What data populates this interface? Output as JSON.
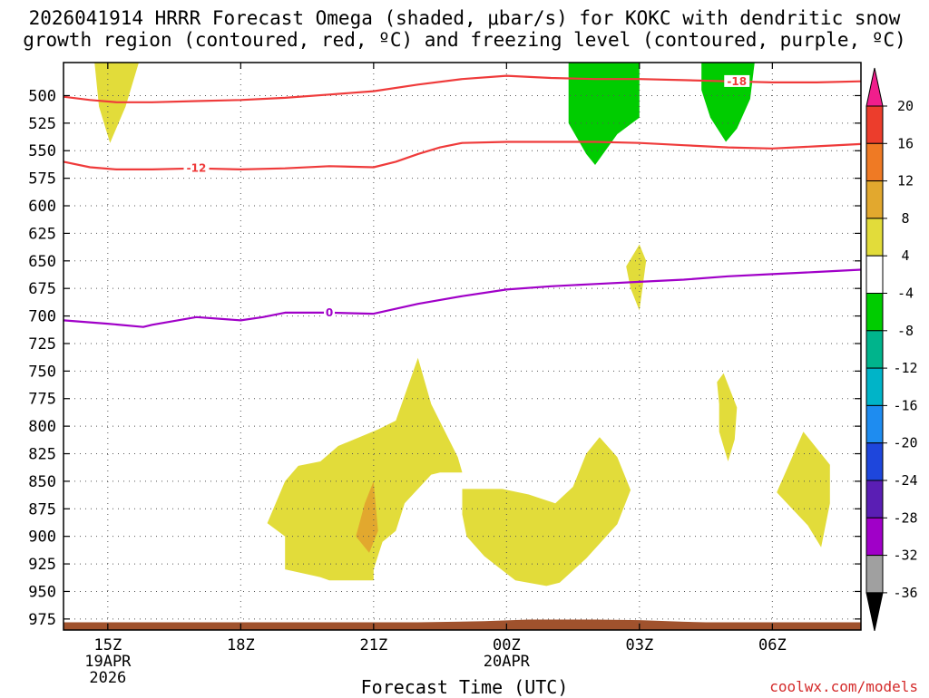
{
  "title_line1": "2026041914 HRRR Forecast Omega (shaded, μbar/s) for KOKC with dendritic snow",
  "title_line2": "growth region (contoured, red, ºC) and freezing level (contoured, purple, ºC)",
  "credit": "coolwx.com/models",
  "chart_data": {
    "type": "heatmap",
    "title": "2026041914 HRRR Forecast Omega (shaded, μbar/s) for KOKC with dendritic snow growth region (contoured, red, ºC) and freezing level (contoured, purple, ºC)",
    "xlabel": "Forecast Time (UTC)",
    "ylabel": "",
    "x_unit": "hours since 2026-04-19 14Z",
    "xlim": [
      0,
      18
    ],
    "y_axis": "pressure (hPa), inverted",
    "ylim": [
      985,
      470
    ],
    "y_ticks": [
      500,
      525,
      550,
      575,
      600,
      625,
      650,
      675,
      700,
      725,
      750,
      775,
      800,
      825,
      850,
      875,
      900,
      925,
      950,
      975
    ],
    "x_ticks": [
      {
        "x": 1,
        "label": "15Z",
        "sub1": "19APR",
        "sub2": "2026"
      },
      {
        "x": 4,
        "label": "18Z",
        "sub1": "",
        "sub2": ""
      },
      {
        "x": 7,
        "label": "21Z",
        "sub1": "",
        "sub2": ""
      },
      {
        "x": 10,
        "label": "00Z",
        "sub1": "20APR",
        "sub2": ""
      },
      {
        "x": 13,
        "label": "03Z",
        "sub1": "",
        "sub2": ""
      },
      {
        "x": 16,
        "label": "06Z",
        "sub1": "",
        "sub2": ""
      }
    ],
    "grid": true,
    "colorbar": {
      "label_values": [
        20,
        16,
        12,
        8,
        4,
        -4,
        -8,
        -12,
        -16,
        -20,
        -24,
        -28,
        -32,
        -36
      ],
      "colors": [
        "#f01e8c",
        "#ec3d2c",
        "#ef7a24",
        "#e2a82e",
        "#e2dc3a",
        "#ffffff",
        "#00cc00",
        "#00b48c",
        "#00b4c8",
        "#1e8cf0",
        "#1e46dc",
        "#5a1eb4",
        "#a000c8",
        "#a0a0a0",
        "#000000"
      ]
    },
    "contours": [
      {
        "name": "-12",
        "color": "#ef3b3b",
        "label_x": 3.0,
        "label": "-12",
        "points": [
          [
            0,
            560
          ],
          [
            0.6,
            565
          ],
          [
            1.2,
            567
          ],
          [
            2,
            567
          ],
          [
            3,
            566
          ],
          [
            4,
            567
          ],
          [
            5,
            566
          ],
          [
            6,
            564
          ],
          [
            7,
            565
          ],
          [
            7.5,
            560
          ],
          [
            8,
            553
          ],
          [
            8.5,
            547
          ],
          [
            9,
            543
          ],
          [
            10,
            542
          ],
          [
            11,
            542
          ],
          [
            12,
            542
          ],
          [
            13,
            543
          ],
          [
            14,
            545
          ],
          [
            15,
            547
          ],
          [
            16,
            548
          ],
          [
            17,
            546
          ],
          [
            18,
            544
          ]
        ]
      },
      {
        "name": "-18",
        "color": "#ef3b3b",
        "label_x": 15.2,
        "label": "-18",
        "points": [
          [
            0,
            501
          ],
          [
            0.6,
            504
          ],
          [
            1.2,
            506
          ],
          [
            2,
            506
          ],
          [
            3,
            505
          ],
          [
            4,
            504
          ],
          [
            5,
            502
          ],
          [
            6,
            499
          ],
          [
            7,
            496
          ],
          [
            8,
            490
          ],
          [
            9,
            485
          ],
          [
            10,
            482
          ],
          [
            11,
            484
          ],
          [
            12,
            485
          ],
          [
            13,
            485
          ],
          [
            14,
            486
          ],
          [
            15,
            487
          ],
          [
            16,
            488
          ],
          [
            17,
            488
          ],
          [
            18,
            487
          ]
        ]
      },
      {
        "name": "0",
        "color": "#a000c8",
        "label_x": 6.0,
        "label": "0",
        "points": [
          [
            0,
            704
          ],
          [
            1,
            707
          ],
          [
            1.8,
            710
          ],
          [
            2,
            708
          ],
          [
            3,
            701
          ],
          [
            4,
            704
          ],
          [
            4.5,
            701
          ],
          [
            5,
            697
          ],
          [
            6,
            697
          ],
          [
            7,
            698
          ],
          [
            8,
            689
          ],
          [
            9,
            682
          ],
          [
            10,
            676
          ],
          [
            11,
            673
          ],
          [
            12,
            671
          ],
          [
            13,
            669
          ],
          [
            14,
            667
          ],
          [
            15,
            664
          ],
          [
            16,
            662
          ],
          [
            17,
            660
          ],
          [
            18,
            658
          ]
        ]
      }
    ],
    "shaded_regions": [
      {
        "value": "+4 to +8",
        "color": "#e2dc3a",
        "points": [
          [
            0.7,
            470
          ],
          [
            1.7,
            470
          ],
          [
            1.4,
            510
          ],
          [
            1.05,
            543
          ],
          [
            0.8,
            510
          ]
        ]
      },
      {
        "value": "-4 to -8",
        "color": "#00cc00",
        "points": [
          [
            11.4,
            470
          ],
          [
            13,
            470
          ],
          [
            13,
            520
          ],
          [
            12.5,
            535
          ],
          [
            12,
            563
          ],
          [
            11.8,
            553
          ],
          [
            11.4,
            525
          ]
        ]
      },
      {
        "value": "-4 to -8",
        "color": "#00cc00",
        "points": [
          [
            14.4,
            470
          ],
          [
            15.6,
            470
          ],
          [
            15.5,
            503
          ],
          [
            15.2,
            530
          ],
          [
            14.95,
            542
          ],
          [
            14.6,
            520
          ],
          [
            14.4,
            495
          ]
        ]
      },
      {
        "value": "+4 to +8",
        "color": "#e2dc3a",
        "points": [
          [
            12.7,
            655
          ],
          [
            13,
            635
          ],
          [
            13.15,
            650
          ],
          [
            13.05,
            680
          ],
          [
            13,
            695
          ],
          [
            12.8,
            675
          ]
        ]
      },
      {
        "value": "+4 to +8",
        "color": "#e2dc3a",
        "points": [
          [
            4.6,
            888
          ],
          [
            5,
            850
          ],
          [
            5.3,
            836
          ],
          [
            5.8,
            832
          ],
          [
            6.2,
            818
          ],
          [
            7.1,
            803
          ],
          [
            7.5,
            795
          ],
          [
            8,
            738
          ],
          [
            8.3,
            780
          ],
          [
            8.9,
            828
          ],
          [
            9.0,
            842
          ],
          [
            8.5,
            842
          ],
          [
            8.3,
            844
          ],
          [
            7.7,
            870
          ],
          [
            7.5,
            895
          ],
          [
            7.2,
            905
          ],
          [
            7,
            930
          ],
          [
            7,
            940
          ],
          [
            6,
            940
          ],
          [
            5.8,
            937
          ],
          [
            5,
            930
          ],
          [
            5,
            900
          ]
        ]
      },
      {
        "value": "+4 to +8",
        "color": "#e2dc3a",
        "points": [
          [
            9,
            857
          ],
          [
            9.9,
            857
          ],
          [
            10.5,
            862
          ],
          [
            11.1,
            870
          ],
          [
            11.5,
            855
          ],
          [
            11.8,
            825
          ],
          [
            12.1,
            810
          ],
          [
            12.5,
            828
          ],
          [
            12.8,
            858
          ],
          [
            12.5,
            889
          ],
          [
            11.8,
            920
          ],
          [
            11.2,
            942
          ],
          [
            10.9,
            945
          ],
          [
            10.2,
            940
          ],
          [
            9.5,
            918
          ],
          [
            9.1,
            900
          ],
          [
            9,
            880
          ]
        ]
      },
      {
        "value": "+8 to +12",
        "color": "#e2a82e",
        "points": [
          [
            7,
            850
          ],
          [
            7.1,
            895
          ],
          [
            6.9,
            915
          ],
          [
            6.6,
            900
          ],
          [
            6.8,
            870
          ]
        ]
      },
      {
        "value": "+4 to +8",
        "color": "#e2dc3a",
        "points": [
          [
            14.75,
            760
          ],
          [
            14.9,
            752
          ],
          [
            15.2,
            783
          ],
          [
            15.15,
            812
          ],
          [
            15.0,
            832
          ],
          [
            14.8,
            805
          ],
          [
            14.8,
            780
          ]
        ]
      },
      {
        "value": "+4 to +8",
        "color": "#e2dc3a",
        "points": [
          [
            16.1,
            860
          ],
          [
            16.7,
            805
          ],
          [
            17.3,
            835
          ],
          [
            17.3,
            870
          ],
          [
            17.1,
            910
          ],
          [
            16.8,
            890
          ],
          [
            16.4,
            873
          ]
        ]
      }
    ],
    "terrain": {
      "color": "#a0522d",
      "top_hpa": 978
    }
  }
}
